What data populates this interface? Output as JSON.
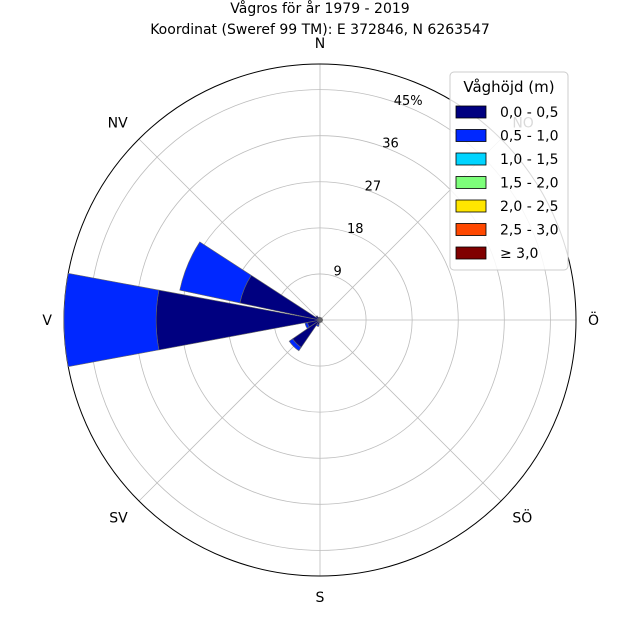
{
  "chart_data": {
    "type": "windrose",
    "title": "Vågros för år 1979 - 2019",
    "subtitle": "Koordinat (Sweref 99 TM): E 372846, N 6263547",
    "directions": [
      "N",
      "NO",
      "Ö",
      "SÖ",
      "S",
      "SV",
      "V",
      "NV"
    ],
    "sector_angles_deg": [
      0,
      22.5,
      45,
      67.5,
      90,
      112.5,
      135,
      157.5,
      180,
      202.5,
      225,
      247.5,
      270,
      292.5,
      315,
      337.5
    ],
    "radial_ticks": [
      9,
      18,
      27,
      36,
      45
    ],
    "radial_tick_labels": [
      "9",
      "18",
      "27",
      "36",
      "45%"
    ],
    "rmax": 50,
    "grid": true,
    "legend": {
      "title": "Våghöjd (m)",
      "placement": "top-right",
      "entries": [
        {
          "label": "0,0 - 0,5",
          "color": "#000080"
        },
        {
          "label": "0,5 - 1,0",
          "color": "#0028ff"
        },
        {
          "label": "1,0 - 1,5",
          "color": "#00d4ff"
        },
        {
          "label": "1,5 - 2,0",
          "color": "#7dff7a"
        },
        {
          "label": "2,0 - 2,5",
          "color": "#ffe600"
        },
        {
          "label": "2,5 - 3,0",
          "color": "#ff4800"
        },
        {
          "label": "≥ 3,0",
          "color": "#800000"
        }
      ]
    },
    "series": [
      {
        "name": "0,0 - 0,5",
        "values": [
          0.5,
          0.5,
          0.5,
          0.5,
          0.5,
          0.5,
          0.5,
          0.5,
          0.5,
          1.0,
          6.5,
          2.5,
          32.0,
          16.0,
          1.0,
          0.6
        ]
      },
      {
        "name": "0,5 - 1,0",
        "values": [
          0,
          0,
          0,
          0,
          0,
          0,
          0,
          0,
          0,
          0.3,
          0.8,
          0.5,
          18.0,
          12.0,
          0,
          0
        ]
      },
      {
        "name": "1,0 - 1,5",
        "values": [
          0,
          0,
          0,
          0,
          0,
          0,
          0,
          0,
          0,
          0,
          0,
          0,
          0,
          0,
          0,
          0
        ]
      },
      {
        "name": "1,5 - 2,0",
        "values": [
          0,
          0,
          0,
          0,
          0,
          0,
          0,
          0,
          0,
          0,
          0,
          0,
          0,
          0,
          0,
          0
        ]
      },
      {
        "name": "2,0 - 2,5",
        "values": [
          0,
          0,
          0,
          0,
          0,
          0,
          0,
          0,
          0,
          0,
          0,
          0,
          0,
          0,
          0,
          0
        ]
      },
      {
        "name": "2,5 - 3,0",
        "values": [
          0,
          0,
          0,
          0,
          0,
          0,
          0,
          0,
          0,
          0,
          0,
          0,
          0,
          0,
          0,
          0
        ]
      },
      {
        "name": "≥ 3,0",
        "values": [
          0,
          0,
          0,
          0,
          0,
          0,
          0,
          0,
          0,
          0,
          0,
          0,
          0,
          0,
          0,
          0
        ]
      }
    ]
  }
}
